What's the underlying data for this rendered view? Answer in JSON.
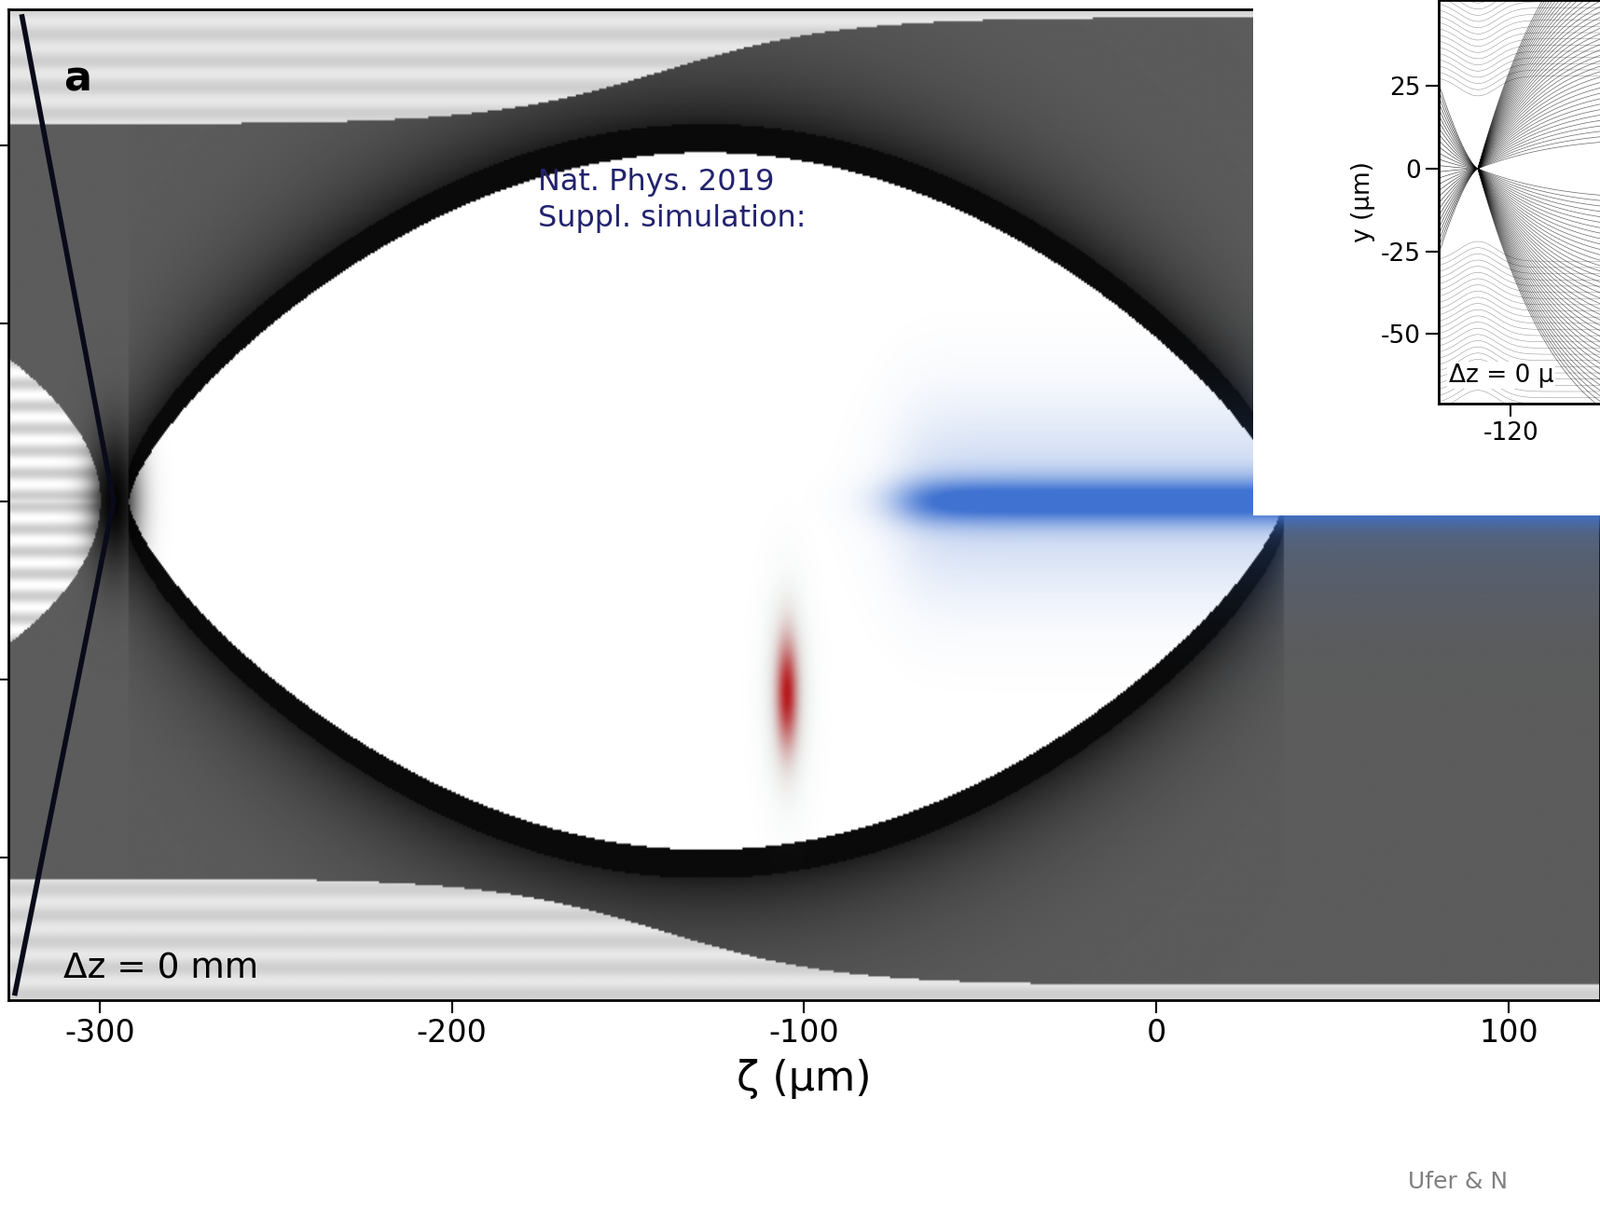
{
  "chart_data": [
    {
      "type": "image",
      "panel_label": "a",
      "annotations": [
        "Δz = 0 mm",
        "Nat. Phys. 2019\nSuppl. simulation:"
      ],
      "xlabel": "ζ (μm)",
      "xlim": [
        -326,
        126
      ],
      "xticks": [
        -300,
        -200,
        -100,
        0,
        100
      ],
      "ylim": [
        -70,
        69
      ],
      "yticks": [
        -50,
        -25,
        0,
        25,
        50
      ],
      "tick_labels": "x"
    },
    {
      "type": "image",
      "ylabel": "y (μm)",
      "annotations": [
        "Δz = 0 μ"
      ],
      "xlim": [
        -142,
        -90
      ],
      "xticks": [
        -120
      ],
      "ylim": [
        -71,
        51
      ],
      "yticks": [
        -50,
        -25,
        0,
        25
      ]
    }
  ],
  "footer": "Ufer & N"
}
